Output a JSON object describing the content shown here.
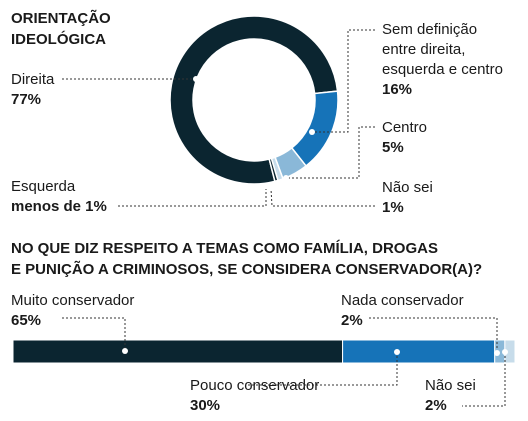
{
  "chart_data": [
    {
      "type": "pie",
      "title_line1": "ORIENTAÇÃO",
      "title_line2": "IDEOLÓGICA",
      "slices": [
        {
          "name": "Direita",
          "label": "77%",
          "value": 77
        },
        {
          "name_line1": "Sem definição",
          "name_line2": "entre direita,",
          "name_line3": "esquerda e centro",
          "label": "16%",
          "value": 16
        },
        {
          "name": "Centro",
          "label": "5%",
          "value": 5
        },
        {
          "name": "Não sei",
          "label": "1%",
          "value": 1
        },
        {
          "name": "Esquerda",
          "label": "menos de 1%",
          "value": 0.6
        }
      ]
    },
    {
      "type": "bar",
      "title_line1": "NO QUE DIZ RESPEITO A TEMAS COMO FAMÍLIA, DROGAS",
      "title_line2": "E PUNIÇÃO A CRIMINOSOS, SE CONSIDERA CONSERVADOR(A)?",
      "segments": [
        {
          "name": "Muito conservador",
          "label": "65%",
          "value": 65
        },
        {
          "name": "Pouco conservador",
          "label": "30%",
          "value": 30
        },
        {
          "name": "Nada conservador",
          "label": "2%",
          "value": 2
        },
        {
          "name": "Não sei",
          "label": "2%",
          "value": 2
        }
      ]
    }
  ],
  "colors": {
    "dark": "#0b2530",
    "blue": "#1673b8",
    "light_blue": "#8ab8d8",
    "pale_blue": "#c7dcea",
    "leader": "#333333"
  }
}
